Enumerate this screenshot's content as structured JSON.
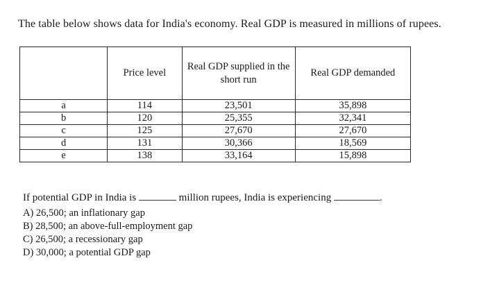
{
  "intro_text": "The table below shows data for India's economy. Real GDP is measured in millions of rupees.",
  "table": {
    "headers": {
      "label": "",
      "price_level": "Price level",
      "supplied": "Real GDP supplied in the short run",
      "demanded": "Real GDP demanded"
    },
    "rows": [
      {
        "label": "a",
        "price_level": "114",
        "supplied": "23,501",
        "demanded": "35,898"
      },
      {
        "label": "b",
        "price_level": "120",
        "supplied": "25,355",
        "demanded": "32,341"
      },
      {
        "label": "c",
        "price_level": "125",
        "supplied": "27,670",
        "demanded": "27,670"
      },
      {
        "label": "d",
        "price_level": "131",
        "supplied": "30,366",
        "demanded": "18,569"
      },
      {
        "label": "e",
        "price_level": "138",
        "supplied": "33,164",
        "demanded": "15,898"
      }
    ]
  },
  "question": {
    "part1": "If potential GDP in India is ",
    "part2": " million rupees, India is experiencing ",
    "part3": "."
  },
  "choices": [
    "A) 26,500; an inflationary gap",
    "B) 28,500; an above-full-employment gap",
    "C) 26,500; a recessionary gap",
    "D) 30,000; a potential GDP gap"
  ]
}
